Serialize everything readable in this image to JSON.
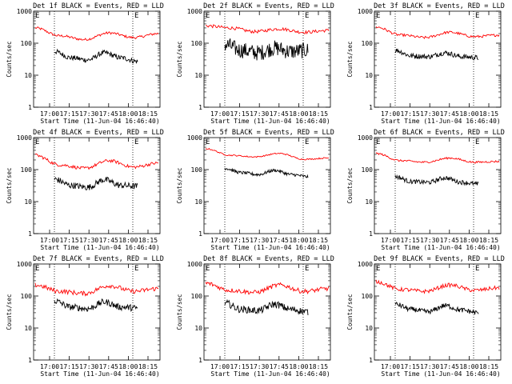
{
  "figure": {
    "start_time_label": "Start Time (11-Jun-04 16:46:40)",
    "ylabel": "Counts/sec",
    "legend_text": "BLACK = Events, RED = LLD"
  },
  "chart_data": [
    {
      "type": "line",
      "title": "Det 1f BLACK = Events, RED = LLD",
      "xlabel": "Start Time (11-Jun-04 16:46:40)",
      "ylabel": "Counts/sec",
      "yscale": "log",
      "ylim": [
        1,
        1000
      ],
      "x_ticks": [
        "17:00",
        "17:15",
        "17:30",
        "17:45",
        "18:00",
        "18:15"
      ],
      "y_ticks": [
        "1",
        "10",
        "100",
        "1000"
      ],
      "markers": [
        "E",
        "E"
      ],
      "series": [
        {
          "name": "LLD",
          "color": "#ff0000",
          "base": [
            300,
            170,
            130,
            210,
            150,
            200
          ],
          "noise": 0.04
        },
        {
          "name": "Events",
          "color": "#000000",
          "base": [
            55,
            35,
            30,
            50,
            35,
            27
          ],
          "noise": 0.08
        }
      ]
    },
    {
      "type": "line",
      "title": "Det 2f BLACK = Events, RED = LLD",
      "xlabel": "Start Time (11-Jun-04 16:46:40)",
      "ylabel": "Counts/sec",
      "yscale": "log",
      "ylim": [
        1,
        1000
      ],
      "x_ticks": [
        "17:00",
        "17:15",
        "17:30",
        "17:45",
        "18:00",
        "18:15"
      ],
      "y_ticks": [
        "1",
        "10",
        "100",
        "1000"
      ],
      "markers": [
        "E",
        "E"
      ],
      "series": [
        {
          "name": "LLD",
          "color": "#ff0000",
          "base": [
            350,
            300,
            230,
            280,
            220,
            250
          ],
          "noise": 0.05
        },
        {
          "name": "Events",
          "color": "#000000",
          "base": [
            90,
            60,
            50,
            70,
            55,
            60
          ],
          "noise": 0.25
        }
      ]
    },
    {
      "type": "line",
      "title": "Det 3f BLACK = Events, RED = LLD",
      "xlabel": "Start Time (11-Jun-04 16:46:40)",
      "ylabel": "Counts/sec",
      "yscale": "log",
      "ylim": [
        1,
        1000
      ],
      "x_ticks": [
        "17:00",
        "17:15",
        "17:30",
        "17:45",
        "18:00",
        "18:15"
      ],
      "y_ticks": [
        "1",
        "10",
        "100",
        "1000"
      ],
      "markers": [
        "E",
        "E"
      ],
      "series": [
        {
          "name": "LLD",
          "color": "#ff0000",
          "base": [
            320,
            180,
            150,
            220,
            160,
            180
          ],
          "noise": 0.04
        },
        {
          "name": "Events",
          "color": "#000000",
          "base": [
            60,
            40,
            38,
            50,
            38,
            35
          ],
          "noise": 0.08
        }
      ]
    },
    {
      "type": "line",
      "title": "Det 4f BLACK = Events, RED = LLD",
      "xlabel": "Start Time (11-Jun-04 16:46:40)",
      "ylabel": "Counts/sec",
      "yscale": "log",
      "ylim": [
        1,
        1000
      ],
      "x_ticks": [
        "17:00",
        "17:15",
        "17:30",
        "17:45",
        "18:00",
        "18:15"
      ],
      "y_ticks": [
        "1",
        "10",
        "100",
        "1000"
      ],
      "markers": [
        "E",
        "E"
      ],
      "series": [
        {
          "name": "LLD",
          "color": "#ff0000",
          "base": [
            280,
            140,
            110,
            190,
            120,
            160
          ],
          "noise": 0.05
        },
        {
          "name": "Events",
          "color": "#000000",
          "base": [
            50,
            32,
            28,
            48,
            32,
            30
          ],
          "noise": 0.1
        }
      ]
    },
    {
      "type": "line",
      "title": "Det 5f BLACK = Events, RED = LLD",
      "xlabel": "Start Time (11-Jun-04 16:46:40)",
      "ylabel": "Counts/sec",
      "yscale": "log",
      "ylim": [
        1,
        1000
      ],
      "x_ticks": [
        "17:00",
        "17:15",
        "17:30",
        "17:45",
        "18:00",
        "18:15"
      ],
      "y_ticks": [
        "1",
        "10",
        "100",
        "1000"
      ],
      "markers": [
        "E",
        "E"
      ],
      "series": [
        {
          "name": "LLD",
          "color": "#ff0000",
          "base": [
            450,
            280,
            250,
            320,
            210,
            230
          ],
          "noise": 0.02
        },
        {
          "name": "Events",
          "color": "#000000",
          "base": [
            110,
            80,
            70,
            95,
            70,
            60
          ],
          "noise": 0.05
        }
      ]
    },
    {
      "type": "line",
      "title": "Det 6f BLACK = Events, RED = LLD",
      "xlabel": "Start Time (11-Jun-04 16:46:40)",
      "ylabel": "Counts/sec",
      "yscale": "log",
      "ylim": [
        1,
        1000
      ],
      "x_ticks": [
        "17:00",
        "17:15",
        "17:30",
        "17:45",
        "18:00",
        "18:15"
      ],
      "y_ticks": [
        "1",
        "10",
        "100",
        "1000"
      ],
      "markers": [
        "E",
        "E"
      ],
      "series": [
        {
          "name": "LLD",
          "color": "#ff0000",
          "base": [
            320,
            190,
            170,
            230,
            170,
            180
          ],
          "noise": 0.03
        },
        {
          "name": "Events",
          "color": "#000000",
          "base": [
            60,
            42,
            40,
            55,
            40,
            35
          ],
          "noise": 0.07
        }
      ]
    },
    {
      "type": "line",
      "title": "Det 7f BLACK = Events, RED = LLD",
      "xlabel": "Start Time (11-Jun-04 16:46:40)",
      "ylabel": "Counts/sec",
      "yscale": "log",
      "ylim": [
        1,
        1000
      ],
      "x_ticks": [
        "17:00",
        "17:15",
        "17:30",
        "17:45",
        "18:00",
        "18:15"
      ],
      "y_ticks": [
        "1",
        "10",
        "100",
        "1000"
      ],
      "markers": [
        "E",
        "E"
      ],
      "series": [
        {
          "name": "LLD",
          "color": "#ff0000",
          "base": [
            220,
            140,
            120,
            210,
            140,
            170
          ],
          "noise": 0.07
        },
        {
          "name": "Events",
          "color": "#000000",
          "base": [
            70,
            45,
            40,
            65,
            45,
            42
          ],
          "noise": 0.1
        }
      ]
    },
    {
      "type": "line",
      "title": "Det 8f BLACK = Events, RED = LLD",
      "xlabel": "Start Time (11-Jun-04 16:46:40)",
      "ylabel": "Counts/sec",
      "yscale": "log",
      "ylim": [
        1,
        1000
      ],
      "x_ticks": [
        "17:00",
        "17:15",
        "17:30",
        "17:45",
        "18:00",
        "18:15"
      ],
      "y_ticks": [
        "1",
        "10",
        "100",
        "1000"
      ],
      "markers": [
        "E",
        "E"
      ],
      "series": [
        {
          "name": "LLD",
          "color": "#ff0000",
          "base": [
            250,
            150,
            130,
            220,
            140,
            170
          ],
          "noise": 0.07
        },
        {
          "name": "Events",
          "color": "#000000",
          "base": [
            60,
            38,
            35,
            55,
            38,
            32
          ],
          "noise": 0.11
        }
      ]
    },
    {
      "type": "line",
      "title": "Det 9f BLACK = Events, RED = LLD",
      "xlabel": "Start Time (11-Jun-04 16:46:40)",
      "ylabel": "Counts/sec",
      "yscale": "log",
      "ylim": [
        1,
        1000
      ],
      "x_ticks": [
        "17:00",
        "17:15",
        "17:30",
        "17:45",
        "18:00",
        "18:15"
      ],
      "y_ticks": [
        "1",
        "10",
        "100",
        "1000"
      ],
      "markers": [
        "E",
        "E"
      ],
      "series": [
        {
          "name": "LLD",
          "color": "#ff0000",
          "base": [
            280,
            160,
            140,
            220,
            150,
            180
          ],
          "noise": 0.06
        },
        {
          "name": "Events",
          "color": "#000000",
          "base": [
            55,
            38,
            32,
            50,
            36,
            30
          ],
          "noise": 0.08
        }
      ]
    }
  ]
}
